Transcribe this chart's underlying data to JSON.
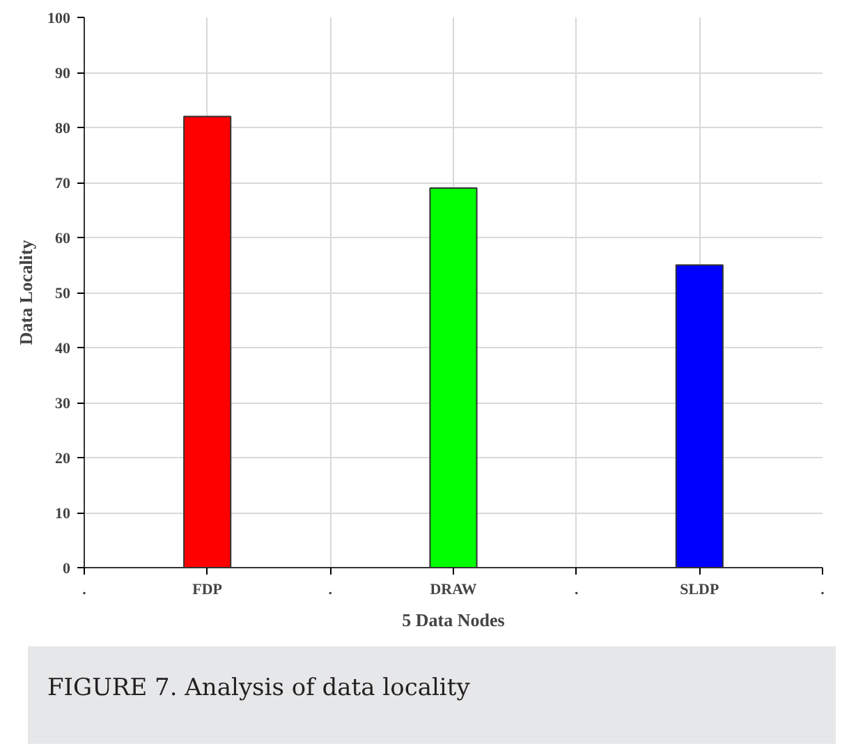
{
  "chart_data": {
    "type": "bar",
    "xlabel": "5 Data Nodes",
    "ylabel": "Data Locality",
    "categories": [
      ".",
      "FDP",
      ".",
      "DRAW",
      ".",
      "SLDP",
      "."
    ],
    "values": [
      null,
      82,
      null,
      69,
      null,
      55,
      null
    ],
    "colors": [
      "#ff0000",
      "#ff0000",
      "#00ff00",
      "#00ff00",
      "#0000ff",
      "#0000ff",
      "#0000ff"
    ],
    "ylim": [
      0,
      100
    ],
    "yticks": [
      0,
      10,
      20,
      30,
      40,
      50,
      60,
      70,
      80,
      90,
      100
    ],
    "grid": true,
    "annotations": [
      "FIGURE 7. Analysis of data locality"
    ]
  }
}
